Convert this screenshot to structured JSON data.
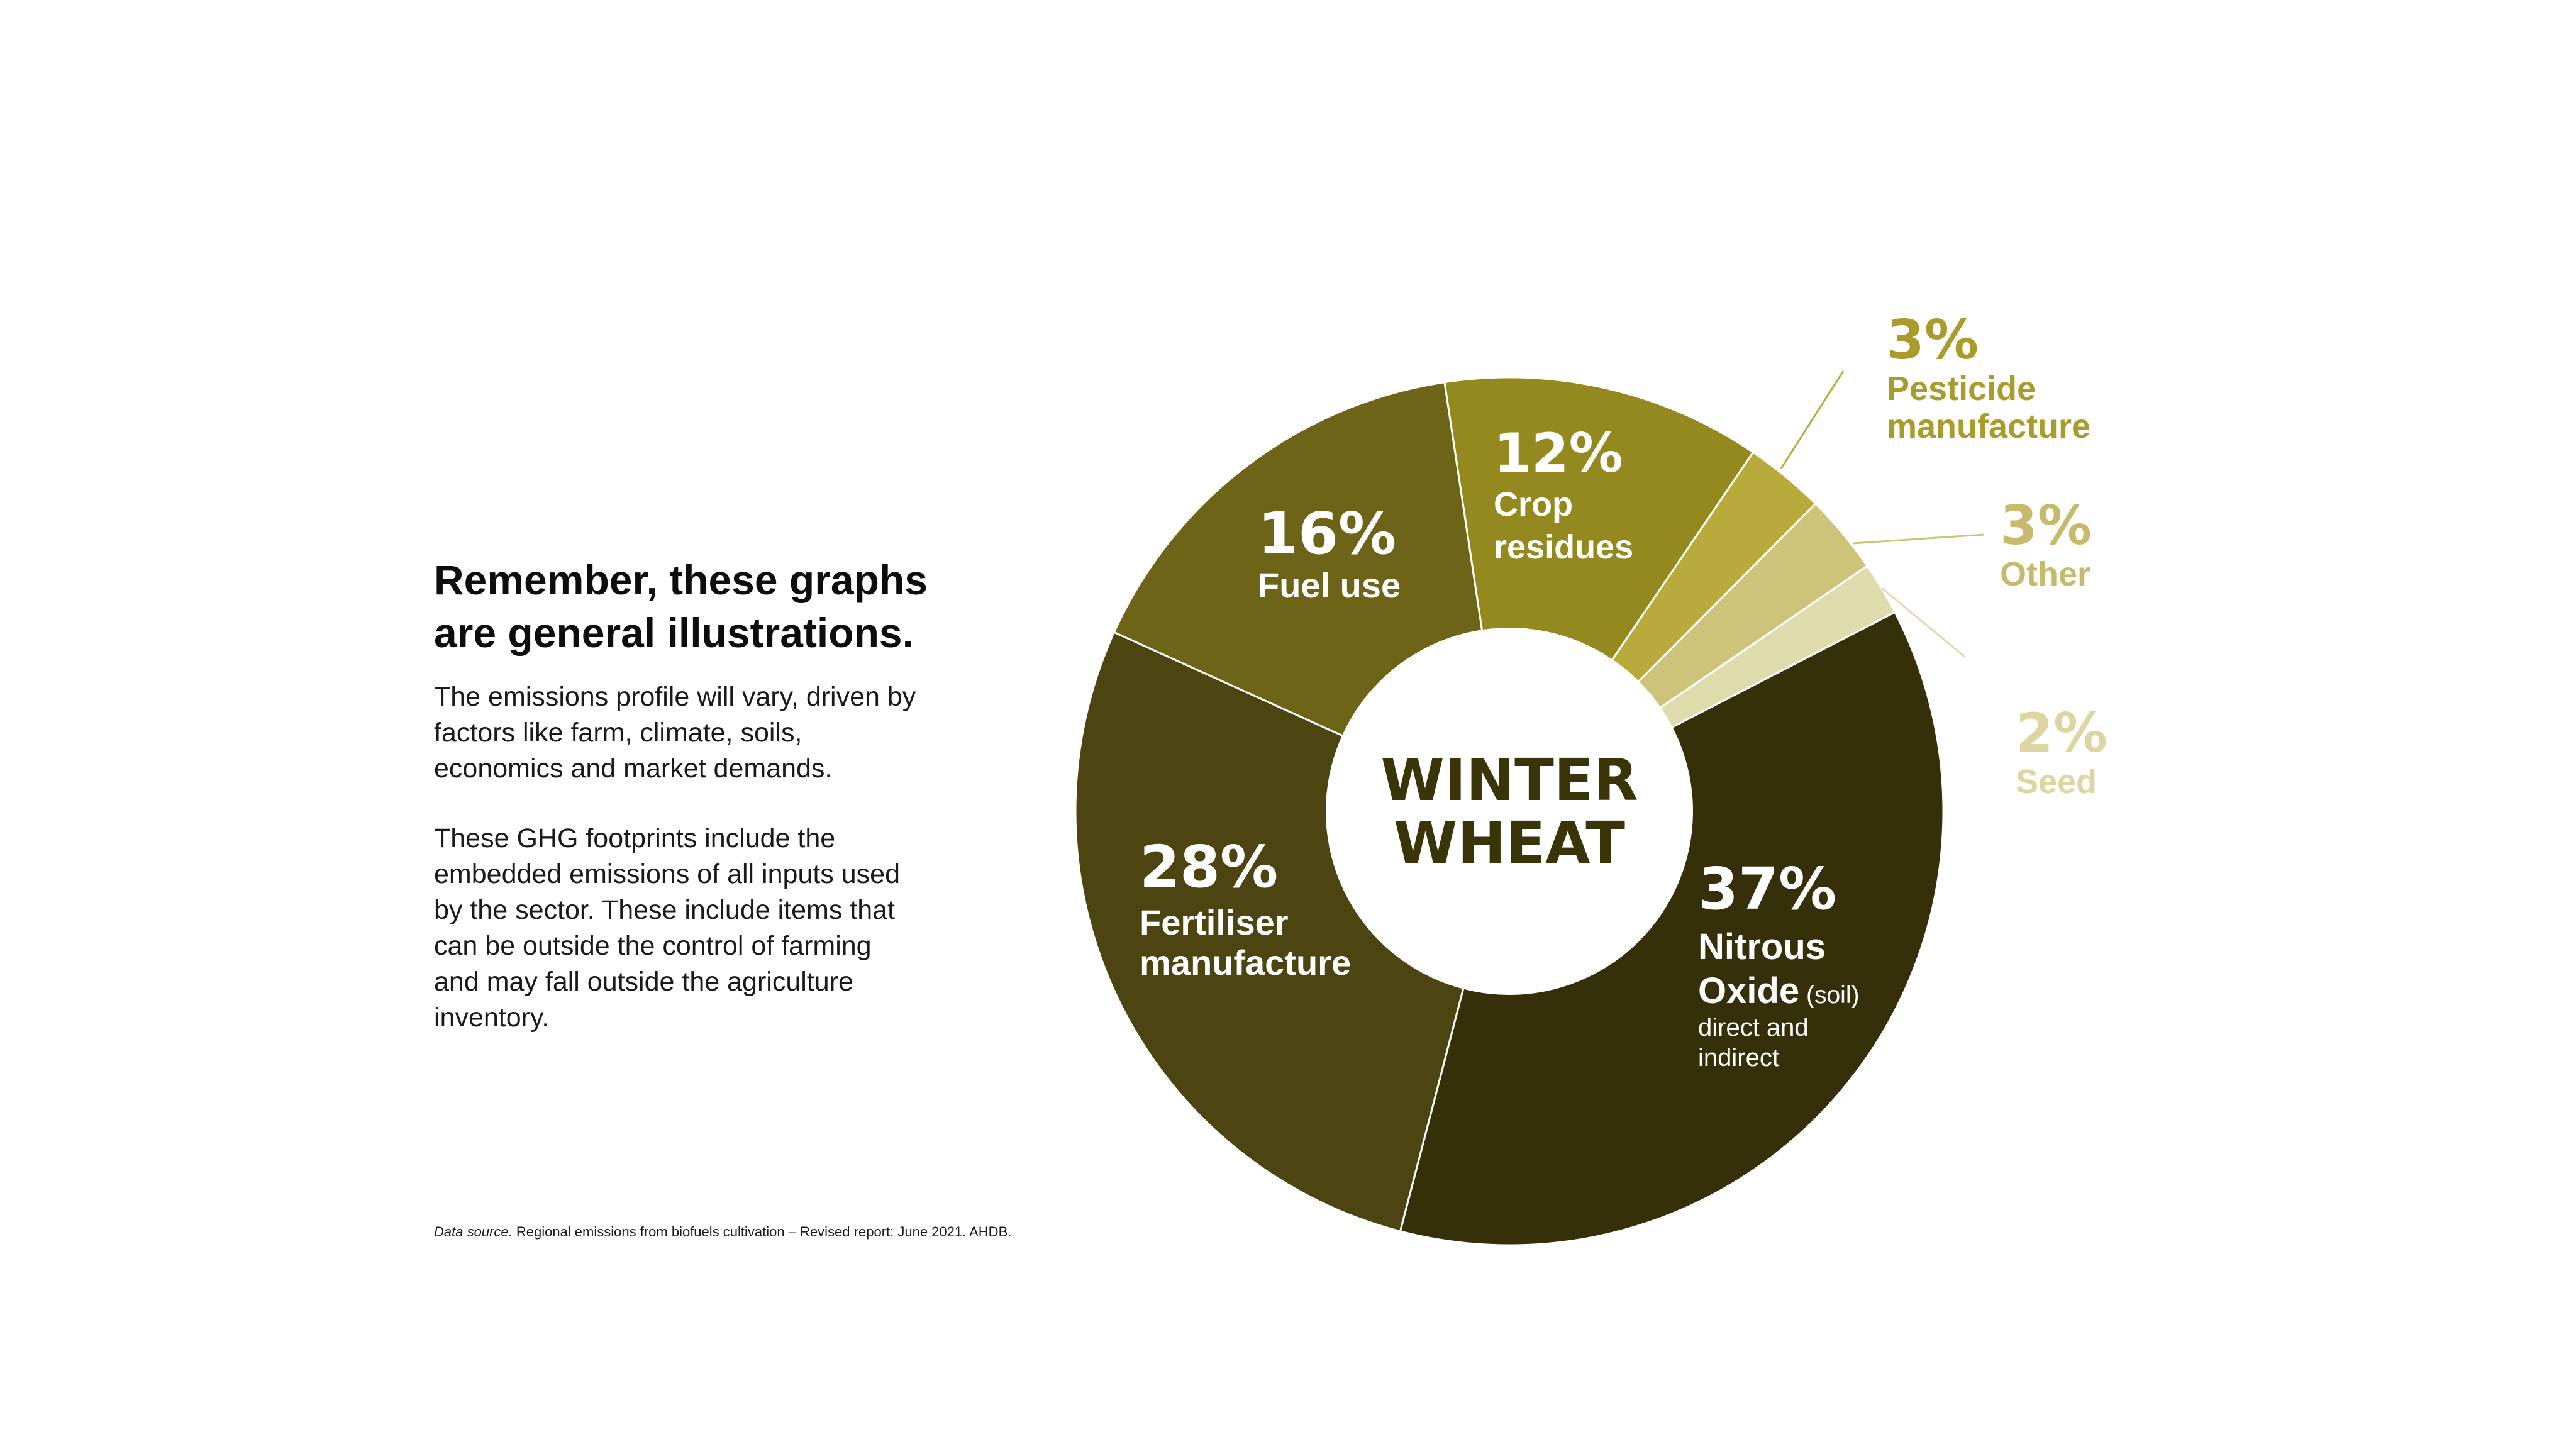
{
  "text": {
    "heading_line1": "Remember, these graphs",
    "heading_line2": "are general illustrations.",
    "para1_lines": [
      "The emissions profile will vary, driven by",
      "factors like farm, climate, soils,",
      "economics and market demands."
    ],
    "para2_lines": [
      "These GHG footprints include the",
      "embedded emissions of all inputs used",
      "by the sector. These include items that",
      "can be outside the control of farming",
      "and may fall outside the agriculture",
      "inventory."
    ],
    "source_label": "Data source.",
    "source_text": " Regional emissions from biofuels cultivation – Revised report: June 2021. AHDB."
  },
  "chart_data": {
    "type": "pie",
    "title_lines": [
      "WINTER",
      "WHEAT"
    ],
    "title_color": "#3a3508",
    "slices": [
      {
        "name": "Crop residues",
        "value": 12,
        "pct_label": "12%",
        "label_lines": [
          "Crop",
          "residues"
        ],
        "sub_lines": [],
        "color": "#94891e",
        "label_color": "#ffffff",
        "callout": false
      },
      {
        "name": "Pesticide manufacture",
        "value": 3,
        "pct_label": "3%",
        "label_lines": [
          "Pesticide",
          "manufacture"
        ],
        "sub_lines": [],
        "color": "#b8ab3c",
        "label_color": "#a99b2c",
        "callout": true
      },
      {
        "name": "Other",
        "value": 3,
        "pct_label": "3%",
        "label_lines": [
          "Other"
        ],
        "sub_lines": [],
        "color": "#cdc47a",
        "label_color": "#c6bb6c",
        "callout": true
      },
      {
        "name": "Seed",
        "value": 2,
        "pct_label": "2%",
        "label_lines": [
          "Seed"
        ],
        "sub_lines": [],
        "color": "#e0dbac",
        "label_color": "#ddd6a3",
        "callout": true
      },
      {
        "name": "Nitrous Oxide",
        "value": 37,
        "pct_label": "37%",
        "label_lines": [
          "Nitrous",
          "Oxide"
        ],
        "label_suffix": " (soil)",
        "sub_lines": [
          "direct and",
          "indirect"
        ],
        "color": "#35300a",
        "label_color": "#ffffff",
        "callout": false
      },
      {
        "name": "Fertiliser manufacture",
        "value": 28,
        "pct_label": "28%",
        "label_lines": [
          "Fertiliser",
          "manufacture"
        ],
        "sub_lines": [],
        "color": "#4d4511",
        "label_color": "#ffffff",
        "callout": false
      },
      {
        "name": "Fuel use",
        "value": 16,
        "pct_label": "16%",
        "label_lines": [
          "Fuel use"
        ],
        "sub_lines": [],
        "color": "#6d6418",
        "label_color": "#ffffff",
        "callout": false
      }
    ]
  }
}
